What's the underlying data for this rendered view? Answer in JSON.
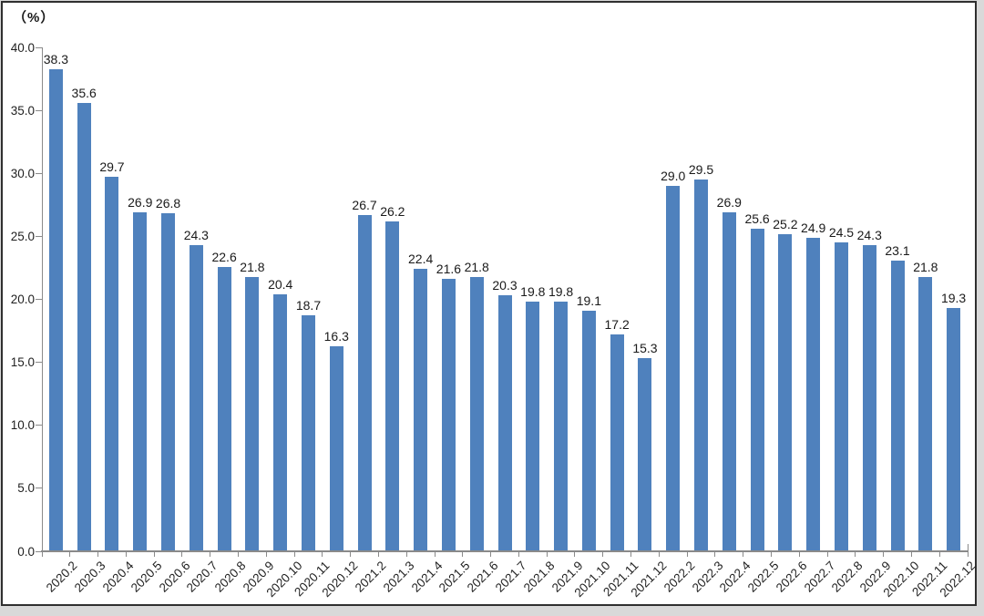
{
  "chart_data": {
    "type": "bar",
    "unit": "（%）",
    "title": "",
    "xlabel": "",
    "ylabel": "（%）",
    "categories": [
      "2020.2",
      "2020.3",
      "2020.4",
      "2020.5",
      "2020.6",
      "2020.7",
      "2020.8",
      "2020.9",
      "2020.10",
      "2020.11",
      "2020.12",
      "2021.2",
      "2021.3",
      "2021.4",
      "2021.5",
      "2021.6",
      "2021.7",
      "2021.8",
      "2021.9",
      "2021.10",
      "2021.11",
      "2021.12",
      "2022.2",
      "2022.3",
      "2022.4",
      "2022.5",
      "2022.6",
      "2022.7",
      "2022.8",
      "2022.9",
      "2022.10",
      "2022.11",
      "2022.12"
    ],
    "values": [
      38.3,
      35.6,
      29.7,
      26.9,
      26.8,
      24.3,
      22.6,
      21.8,
      20.4,
      18.7,
      16.3,
      26.7,
      26.2,
      22.4,
      21.6,
      21.8,
      20.3,
      19.8,
      19.8,
      19.1,
      17.2,
      15.3,
      29.0,
      29.5,
      26.9,
      25.6,
      25.2,
      24.9,
      24.5,
      24.3,
      23.1,
      21.8,
      19.3
    ],
    "ylim": [
      0,
      40
    ],
    "yticks": [
      0,
      5,
      10,
      15,
      20,
      25,
      30,
      35,
      40
    ],
    "ytick_decimals": 1,
    "grid": false,
    "legend": "none",
    "data_labels": true,
    "colors": {
      "bar": "#4f81bd",
      "axis": "#8a8a8a",
      "text": "#1f1f1f"
    }
  }
}
